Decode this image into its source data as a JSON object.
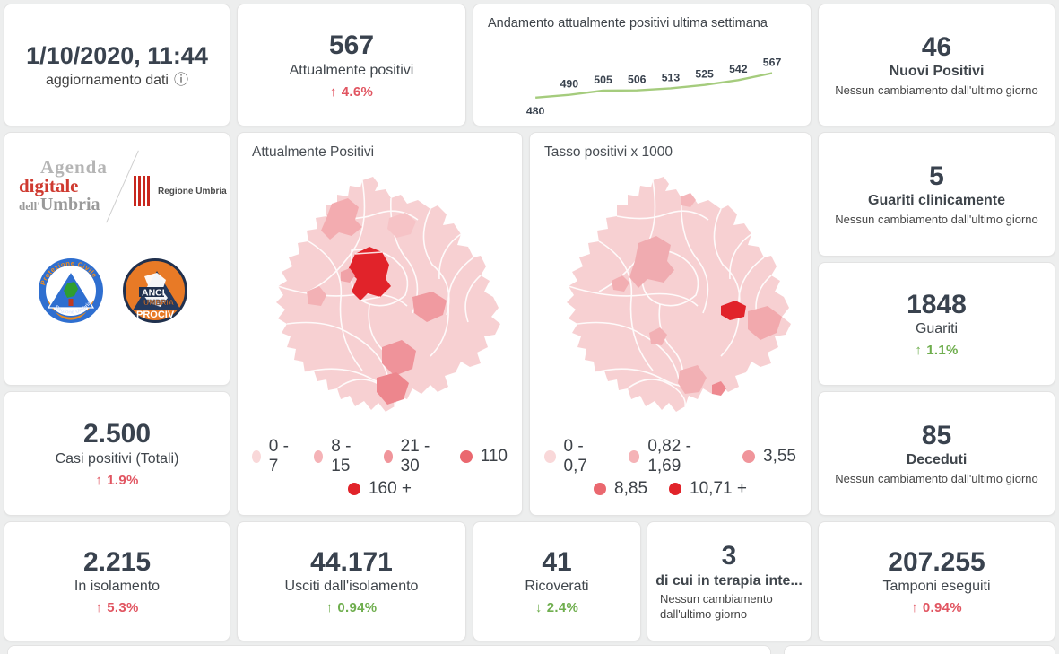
{
  "colors": {
    "accent_red": "#e15561",
    "accent_green": "#6fae4e",
    "number_dark": "#39424e",
    "sparkline_green": "#a5cc7d",
    "map_base_pink": "#f7d0d2",
    "map_max_red": "#e1232a",
    "page_background": "#edeeee"
  },
  "update_card": {
    "datetime": "1/10/2020, 11:44",
    "label": "aggiornamento dati"
  },
  "cards": {
    "attualmente_positivi": {
      "value": "567",
      "label": "Attualmente positivi",
      "delta_arrow": "↑",
      "delta_value": "4.6%"
    },
    "nuovi_positivi": {
      "value": "46",
      "label": "Nuovi Positivi",
      "note": "Nessun cambiamento dall'ultimo giorno"
    },
    "guariti_clinicamente": {
      "value": "5",
      "label": "Guariti clinicamente",
      "note": "Nessun cambiamento dall'ultimo giorno"
    },
    "guariti": {
      "value": "1848",
      "label": "Guariti",
      "delta_arrow": "↑",
      "delta_value": "1.1%"
    },
    "deceduti": {
      "value": "85",
      "label": "Deceduti",
      "note": "Nessun cambiamento dall'ultimo giorno"
    },
    "casi_positivi": {
      "value": "2.500",
      "label": "Casi positivi (Totali)",
      "delta_arrow": "↑",
      "delta_value": "1.9%"
    },
    "in_isolamento": {
      "value": "2.215",
      "label": "In isolamento",
      "delta_arrow": "↑",
      "delta_value": "5.3%"
    },
    "usciti_isolamento": {
      "value": "44.171",
      "label": "Usciti dall'isolamento",
      "delta_arrow": "↑",
      "delta_value": "0.94%"
    },
    "ricoverati": {
      "value": "41",
      "label": "Ricoverati",
      "delta_arrow": "↓",
      "delta_value": "2.4%"
    },
    "terapia_intensiva": {
      "value": "3",
      "label": "di cui in terapia inte...",
      "note": "Nessun cambiamento dall'ultimo giorno"
    },
    "tamponi": {
      "value": "207.255",
      "label": "Tamponi eseguiti",
      "delta_arrow": "↑",
      "delta_value": "0.94%"
    }
  },
  "trend": {
    "title": "Andamento attualmente positivi ultima settimana",
    "values": [
      480,
      490,
      505,
      506,
      513,
      525,
      542,
      567
    ]
  },
  "maps": [
    {
      "title": "Attualmente Positivi",
      "legend_rows": [
        [
          {
            "label": "0 - 7",
            "color": "#f9d8d9"
          },
          {
            "label": "8 - 15",
            "color": "#f5b3b7"
          },
          {
            "label": "21 - 30",
            "color": "#f0959b"
          },
          {
            "label": "110",
            "color": "#ea686f"
          }
        ],
        [
          {
            "label": "160 +",
            "color": "#e1232a"
          }
        ]
      ]
    },
    {
      "title": "Tasso positivi x 1000",
      "legend_rows": [
        [
          {
            "label": "0 - 0,7",
            "color": "#f9d8d9"
          },
          {
            "label": "0,82 - 1,69",
            "color": "#f5b3b7"
          },
          {
            "label": "3,55",
            "color": "#f0959b"
          }
        ],
        [
          {
            "label": "8,85",
            "color": "#ea686f"
          },
          {
            "label": "10,71 +",
            "color": "#e1232a"
          }
        ]
      ]
    }
  ],
  "logos": {
    "agenda": {
      "line1": "Agenda",
      "line2": "digitale",
      "line3_small": "dell'",
      "line3": "Umbria"
    },
    "regione": {
      "label": "Regione Umbria"
    },
    "protezione": {
      "top": "Protezione Civile",
      "bottom": "Regione Umbria"
    },
    "anci": {
      "line1": "ANCI",
      "line2": "UMBRIA",
      "line3": "PROCIV"
    }
  },
  "chart_data": [
    {
      "type": "line",
      "title": "Andamento attualmente positivi ultima settimana",
      "x": [
        1,
        2,
        3,
        4,
        5,
        6,
        7,
        8
      ],
      "values": [
        480,
        490,
        505,
        506,
        513,
        525,
        542,
        567
      ],
      "data_labels": true,
      "line_color": "#a5cc7d",
      "axes": "hidden",
      "grid": false,
      "legend": "none"
    },
    {
      "type": "heatmap",
      "subtype": "choropleth-map",
      "title": "Attualmente Positivi",
      "region": "Umbria municipalities",
      "legend_bins": [
        "0 - 7",
        "8 - 15",
        "21 - 30",
        "110",
        "160 +"
      ],
      "bin_colors": [
        "#f9d8d9",
        "#f5b3b7",
        "#f0959b",
        "#ea686f",
        "#e1232a"
      ],
      "legend_position": "bottom"
    },
    {
      "type": "heatmap",
      "subtype": "choropleth-map",
      "title": "Tasso positivi x 1000",
      "region": "Umbria municipalities",
      "legend_bins": [
        "0 - 0,7",
        "0,82 - 1,69",
        "3,55",
        "8,85",
        "10,71 +"
      ],
      "bin_colors": [
        "#f9d8d9",
        "#f5b3b7",
        "#f0959b",
        "#ea686f",
        "#e1232a"
      ],
      "legend_position": "bottom"
    }
  ]
}
